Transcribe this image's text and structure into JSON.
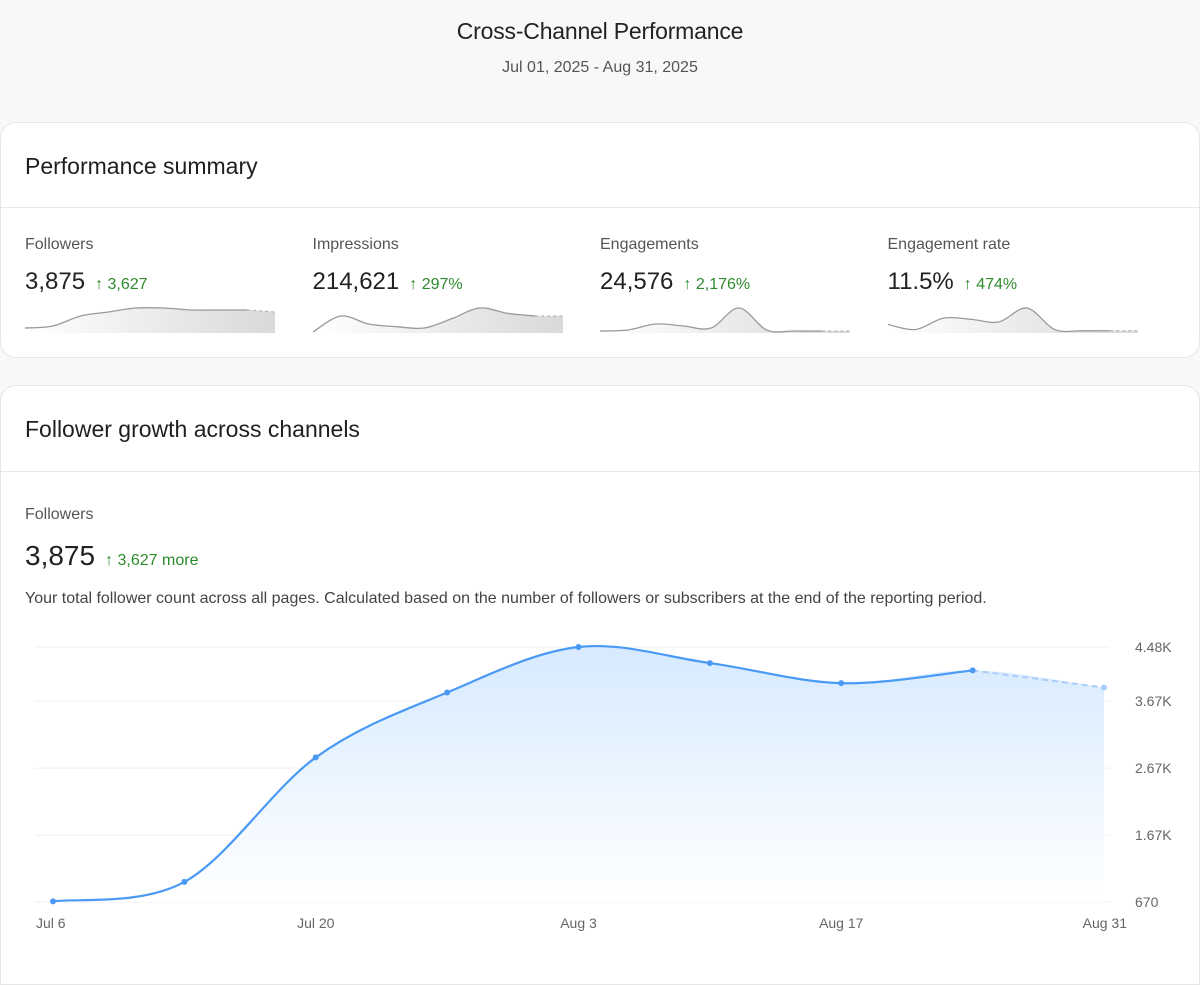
{
  "header": {
    "title": "Cross-Channel Performance",
    "date_range": "Jul 01, 2025 - Aug 31, 2025"
  },
  "summary": {
    "title": "Performance summary",
    "metrics": [
      {
        "label": "Followers",
        "value": "3,875",
        "delta": "↑ 3,627",
        "sparkline": [
          2,
          3,
          8,
          10,
          12,
          12,
          11,
          11,
          11,
          10
        ]
      },
      {
        "label": "Impressions",
        "value": "214,621",
        "delta": "↑ 297%",
        "sparkline": [
          0,
          12,
          6,
          4,
          3,
          10,
          18,
          14,
          12,
          12
        ]
      },
      {
        "label": "Engagements",
        "value": "24,576",
        "delta": "↑ 2,176%",
        "sparkline": [
          1,
          2,
          8,
          6,
          4,
          24,
          2,
          1,
          1,
          1
        ]
      },
      {
        "label": "Engagement rate",
        "value": "11.5%",
        "delta": "↑ 474%",
        "sparkline": [
          6,
          2,
          11,
          10,
          8,
          19,
          2,
          1,
          1,
          1
        ]
      }
    ],
    "trend_color": "#2e8a2e"
  },
  "growth": {
    "title": "Follower growth across channels",
    "metric_label": "Followers",
    "value": "3,875",
    "delta": "↑ 3,627 more",
    "description": "Your total follower count across all pages. Calculated based on the number of followers or subscribers at the end of the reporting period."
  },
  "chart_data": {
    "type": "area",
    "x": [
      "Jul 6",
      "Jul 13",
      "Jul 20",
      "Jul 27",
      "Aug 3",
      "Aug 10",
      "Aug 17",
      "Aug 24",
      "Aug 31"
    ],
    "values": [
      680,
      970,
      2830,
      3800,
      4480,
      4240,
      3940,
      4130,
      3875
    ],
    "partial_last_point": true,
    "x_tick_labels": [
      "Jul 6",
      "Jul 20",
      "Aug 3",
      "Aug 17",
      "Aug 31"
    ],
    "y_tick_labels": [
      "4.48K",
      "3.67K",
      "2.67K",
      "1.67K",
      "670"
    ],
    "y_ticks": [
      4480,
      3670,
      2670,
      1670,
      670
    ],
    "ylim": [
      670,
      4480
    ],
    "grid": true,
    "y_axis_position": "right",
    "line_color": "#4a9af5"
  }
}
